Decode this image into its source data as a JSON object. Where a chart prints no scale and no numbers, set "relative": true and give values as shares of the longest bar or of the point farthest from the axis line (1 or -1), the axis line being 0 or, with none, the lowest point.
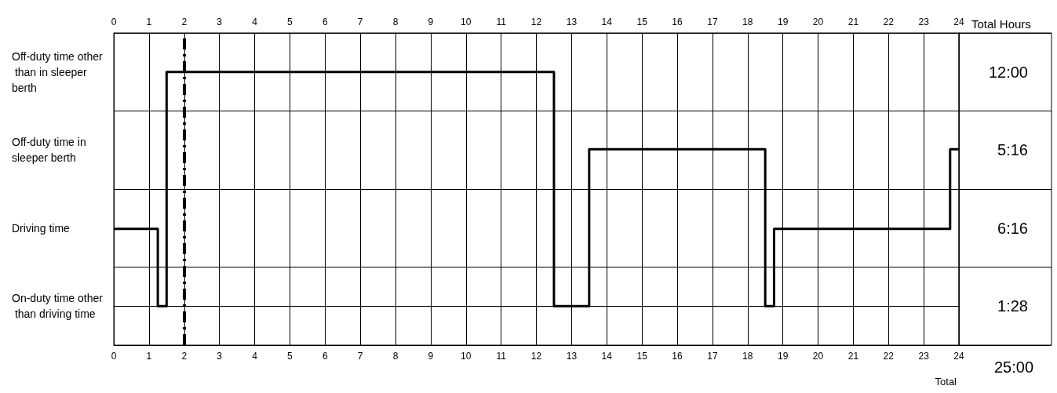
{
  "chart_data": {
    "type": "step",
    "relative": true,
    "y_categories": [
      "Off-duty time other than in sleeper berth",
      "Off-duty time in sleeper berth",
      "Driving time",
      "On-duty time other than driving time"
    ],
    "y2_categories": [
      "12:00",
      "5:16",
      "6:16",
      "1:28"
    ],
    "y2label": "Total Hours",
    "x": [
      0,
      1.25,
      1.5,
      12.5,
      13.5,
      18.5,
      18.75,
      23.75,
      24
    ],
    "series": [
      {
        "color": "#000000",
        "values": [
          0.33,
          0,
          1,
          0,
          0.67,
          0,
          0.33,
          0.67,
          0.67
        ]
      }
    ],
    "xlim": [
      0,
      24
    ],
    "xticks": [
      0,
      1,
      2,
      3,
      4,
      5,
      6,
      7,
      8,
      9,
      10,
      11,
      12,
      13,
      14,
      15,
      16,
      17,
      18,
      19,
      20,
      21,
      22,
      23,
      24
    ],
    "x2lim": [
      0,
      24
    ],
    "x2ticks": [
      0,
      1,
      2,
      3,
      4,
      5,
      6,
      7,
      8,
      9,
      10,
      11,
      12,
      13,
      14,
      15,
      16,
      17,
      18,
      19,
      20,
      21,
      22,
      23,
      24
    ],
    "ref_lines": [
      {
        "axis": "x",
        "value": 2,
        "color": "#000000",
        "line_style": "dashed"
      }
    ],
    "annotations": [
      "Total",
      "25:00"
    ],
    "grid": true,
    "marker": "none",
    "line_style": "solid"
  }
}
